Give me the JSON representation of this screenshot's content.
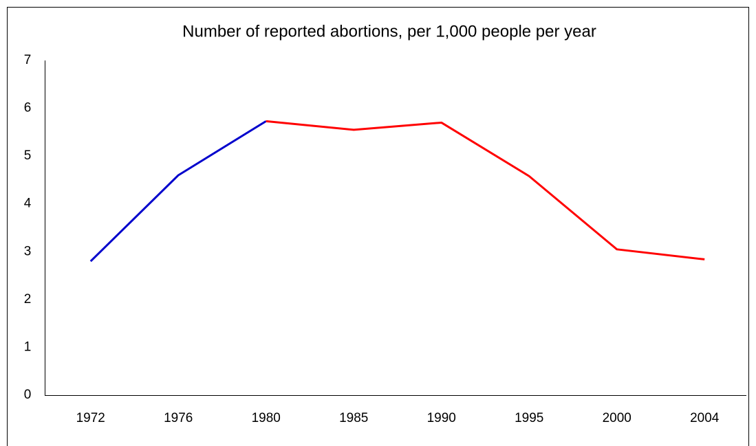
{
  "chart_data": {
    "type": "line",
    "title": "Number of reported abortions, per 1,000 people per year",
    "categories": [
      "1972",
      "1976",
      "1980",
      "1985",
      "1990",
      "1995",
      "2000",
      "2004"
    ],
    "series": [
      {
        "color": "#0000cc",
        "values": [
          2.8,
          4.6,
          5.73,
          null,
          null,
          null,
          null,
          null
        ]
      },
      {
        "color": "#ff0000",
        "values": [
          null,
          null,
          5.73,
          5.55,
          5.7,
          4.58,
          3.05,
          2.84
        ]
      }
    ],
    "ylim": [
      0,
      7
    ],
    "yticks": [
      0,
      1,
      2,
      3,
      4,
      5,
      6,
      7
    ],
    "grid": false
  }
}
